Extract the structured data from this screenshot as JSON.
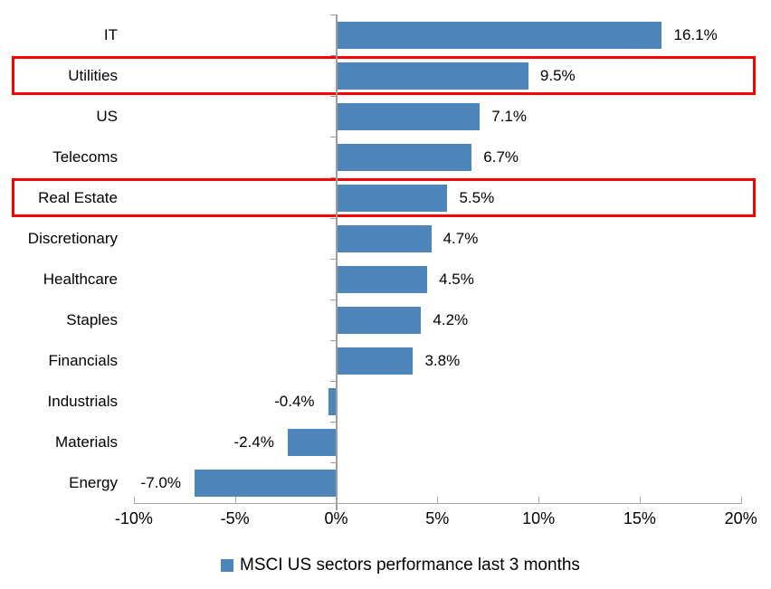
{
  "chart_data": {
    "type": "bar",
    "orientation": "horizontal",
    "categories": [
      "IT",
      "Utilities",
      "US",
      "Telecoms",
      "Real Estate",
      "Discretionary",
      "Healthcare",
      "Staples",
      "Financials",
      "Industrials",
      "Materials",
      "Energy"
    ],
    "values": [
      16.1,
      9.5,
      7.1,
      6.7,
      5.5,
      4.7,
      4.5,
      4.2,
      3.8,
      -0.4,
      -2.4,
      -7.0
    ],
    "data_labels": [
      "16.1%",
      "9.5%",
      "7.1%",
      "6.7%",
      "5.5%",
      "4.7%",
      "4.5%",
      "4.2%",
      "3.8%",
      "-0.4%",
      "-2.4%",
      "-7.0%"
    ],
    "highlighted_categories": [
      "Utilities",
      "Real Estate"
    ],
    "x_axis": {
      "tick_labels": [
        "-10%",
        "-5%",
        "0%",
        "5%",
        "10%",
        "15%",
        "20%"
      ],
      "tick_values": [
        -10,
        -5,
        0,
        5,
        10,
        15,
        20
      ],
      "min": -10,
      "max": 20,
      "grid": false
    },
    "legend": {
      "label": "MSCI US sectors performance last 3 months",
      "marker": "square",
      "position": "bottom"
    },
    "colors": {
      "bar": "#4e86bc",
      "highlight_box": "#fe0000",
      "value_axis": "#a6a6a6",
      "category_axis": "#9e9e9e",
      "text": "#000000"
    }
  }
}
